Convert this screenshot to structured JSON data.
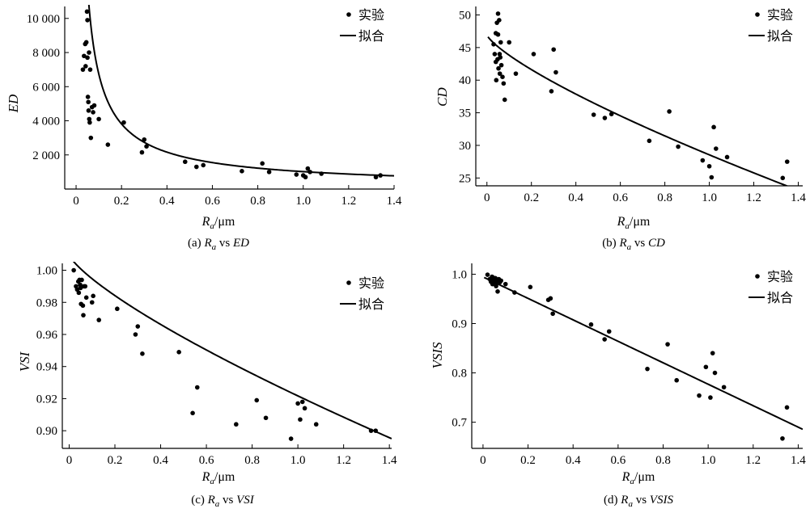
{
  "chart_data": [
    {
      "id": "a",
      "type": "scatter",
      "ylabel": "ED",
      "xlabel_main": "R",
      "xlabel_sub": "a",
      "xlabel_unit": "/μm",
      "caption": {
        "prefix": "(a) ",
        "r": "R",
        "sub": "a",
        "mid": " vs ",
        "var": "ED"
      },
      "xlim": [
        -0.05,
        1.4
      ],
      "ylim": [
        0,
        10700
      ],
      "xticks": [
        0,
        0.2,
        0.4,
        0.6,
        0.8,
        1.0,
        1.2,
        1.4
      ],
      "xtick_labels": [
        "0",
        "0.2",
        "0.4",
        "0.6",
        "0.8",
        "1.0",
        "1.2",
        "1.4"
      ],
      "yticks": [
        2000,
        4000,
        6000,
        8000,
        10000
      ],
      "ytick_labels": [
        "2 000",
        "4 000",
        "6 000",
        "8 000",
        "10 000"
      ],
      "legend": {
        "points": "实验",
        "line": "拟合"
      },
      "fit": {
        "form": "power",
        "a": 1020,
        "b": -0.82
      },
      "points": [
        [
          0.03,
          7000
        ],
        [
          0.035,
          7800
        ],
        [
          0.04,
          8500
        ],
        [
          0.042,
          7200
        ],
        [
          0.045,
          8600
        ],
        [
          0.048,
          10400
        ],
        [
          0.05,
          9900
        ],
        [
          0.05,
          7700
        ],
        [
          0.052,
          5400
        ],
        [
          0.054,
          5100
        ],
        [
          0.055,
          4600
        ],
        [
          0.057,
          8000
        ],
        [
          0.058,
          4100
        ],
        [
          0.06,
          3900
        ],
        [
          0.062,
          7000
        ],
        [
          0.065,
          3000
        ],
        [
          0.07,
          4800
        ],
        [
          0.075,
          4500
        ],
        [
          0.08,
          4900
        ],
        [
          0.1,
          4100
        ],
        [
          0.14,
          2600
        ],
        [
          0.21,
          3900
        ],
        [
          0.29,
          2150
        ],
        [
          0.3,
          2900
        ],
        [
          0.31,
          2500
        ],
        [
          0.48,
          1600
        ],
        [
          0.53,
          1300
        ],
        [
          0.56,
          1400
        ],
        [
          0.73,
          1050
        ],
        [
          0.82,
          1500
        ],
        [
          0.85,
          1000
        ],
        [
          0.97,
          850
        ],
        [
          1.0,
          800
        ],
        [
          1.01,
          700
        ],
        [
          1.02,
          1200
        ],
        [
          1.03,
          1000
        ],
        [
          1.08,
          900
        ],
        [
          1.32,
          700
        ],
        [
          1.34,
          800
        ]
      ]
    },
    {
      "id": "b",
      "type": "scatter",
      "ylabel": "CD",
      "xlabel_main": "R",
      "xlabel_sub": "a",
      "xlabel_unit": "/μm",
      "caption": {
        "prefix": "(b) ",
        "r": "R",
        "sub": "a",
        "mid": " vs ",
        "var": "CD"
      },
      "xlim": [
        -0.05,
        1.42
      ],
      "ylim": [
        23.8,
        51.3
      ],
      "xticks": [
        0,
        0.2,
        0.4,
        0.6,
        0.8,
        1.0,
        1.2,
        1.4
      ],
      "xtick_labels": [
        "0",
        "0.2",
        "0.4",
        "0.6",
        "0.8",
        "1.0",
        "1.2",
        "1.4"
      ],
      "yticks": [
        25,
        30,
        35,
        40,
        45,
        50
      ],
      "ytick_labels": [
        "25",
        "30",
        "35",
        "40",
        "45",
        "50"
      ],
      "legend": {
        "points": "实验",
        "line": "拟合"
      },
      "fit": {
        "form": "power_offset",
        "a": 46.95,
        "b": -18.4,
        "c": 0.77
      },
      "points": [
        [
          0.03,
          45.5
        ],
        [
          0.035,
          44
        ],
        [
          0.04,
          47.2
        ],
        [
          0.04,
          42.8
        ],
        [
          0.042,
          40
        ],
        [
          0.045,
          48.8
        ],
        [
          0.048,
          43.2
        ],
        [
          0.05,
          50.2
        ],
        [
          0.05,
          47
        ],
        [
          0.052,
          41.8
        ],
        [
          0.055,
          49.2
        ],
        [
          0.057,
          44
        ],
        [
          0.058,
          41
        ],
        [
          0.06,
          43.5
        ],
        [
          0.062,
          45.8
        ],
        [
          0.065,
          42.3
        ],
        [
          0.07,
          40.5
        ],
        [
          0.075,
          39.5
        ],
        [
          0.08,
          37
        ],
        [
          0.1,
          45.8
        ],
        [
          0.13,
          41
        ],
        [
          0.21,
          44
        ],
        [
          0.29,
          38.3
        ],
        [
          0.3,
          44.7
        ],
        [
          0.31,
          41.2
        ],
        [
          0.48,
          34.7
        ],
        [
          0.53,
          34.2
        ],
        [
          0.56,
          34.8
        ],
        [
          0.73,
          30.7
        ],
        [
          0.82,
          35.2
        ],
        [
          0.86,
          29.8
        ],
        [
          0.97,
          27.7
        ],
        [
          1.0,
          26.8
        ],
        [
          1.01,
          25.1
        ],
        [
          1.02,
          32.8
        ],
        [
          1.03,
          29.5
        ],
        [
          1.08,
          28.2
        ],
        [
          1.33,
          25
        ],
        [
          1.35,
          27.5
        ]
      ]
    },
    {
      "id": "c",
      "type": "scatter",
      "ylabel": "VSI",
      "xlabel_main": "R",
      "xlabel_sub": "a",
      "xlabel_unit": "/μm",
      "caption": {
        "prefix": "(c) ",
        "r": "R",
        "sub": "a",
        "mid": " vs ",
        "var": "VSI"
      },
      "xlim": [
        -0.03,
        1.41
      ],
      "ylim": [
        0.889,
        1.0043
      ],
      "xticks": [
        0,
        0.2,
        0.4,
        0.6,
        0.8,
        1.0,
        1.2,
        1.4
      ],
      "xtick_labels": [
        "0",
        "0.2",
        "0.4",
        "0.6",
        "0.8",
        "1.0",
        "1.2",
        "1.4"
      ],
      "yticks": [
        0.9,
        0.92,
        0.94,
        0.96,
        0.98,
        1.0
      ],
      "ytick_labels": [
        "0.90",
        "0.92",
        "0.94",
        "0.96",
        "0.98",
        "1.00"
      ],
      "legend": {
        "points": "实验",
        "line": "拟合"
      },
      "fit": {
        "form": "power_offset",
        "a": 1.0097,
        "b": -0.088,
        "c": 0.77
      },
      "points": [
        [
          0.02,
          1.0
        ],
        [
          0.03,
          0.99
        ],
        [
          0.035,
          0.988
        ],
        [
          0.04,
          0.993
        ],
        [
          0.042,
          0.986
        ],
        [
          0.045,
          0.994
        ],
        [
          0.048,
          0.991
        ],
        [
          0.05,
          0.989
        ],
        [
          0.052,
          0.979
        ],
        [
          0.055,
          0.994
        ],
        [
          0.06,
          0.978
        ],
        [
          0.062,
          0.972
        ],
        [
          0.065,
          0.99
        ],
        [
          0.07,
          0.99
        ],
        [
          0.075,
          0.983
        ],
        [
          0.1,
          0.98
        ],
        [
          0.105,
          0.984
        ],
        [
          0.13,
          0.969
        ],
        [
          0.21,
          0.976
        ],
        [
          0.29,
          0.96
        ],
        [
          0.3,
          0.965
        ],
        [
          0.32,
          0.948
        ],
        [
          0.48,
          0.949
        ],
        [
          0.54,
          0.911
        ],
        [
          0.56,
          0.927
        ],
        [
          0.73,
          0.904
        ],
        [
          0.82,
          0.919
        ],
        [
          0.86,
          0.908
        ],
        [
          0.97,
          0.895
        ],
        [
          1.0,
          0.917
        ],
        [
          1.01,
          0.907
        ],
        [
          1.02,
          0.918
        ],
        [
          1.03,
          0.914
        ],
        [
          1.08,
          0.904
        ],
        [
          1.32,
          0.9
        ],
        [
          1.34,
          0.9
        ]
      ]
    },
    {
      "id": "d",
      "type": "scatter",
      "ylabel": "VSIS",
      "xlabel_main": "R",
      "xlabel_sub": "a",
      "xlabel_unit": "/μm",
      "caption": {
        "prefix": "(d) ",
        "r": "R",
        "sub": "a",
        "mid": " vs ",
        "var": "VSIS"
      },
      "xlim": [
        -0.05,
        1.42
      ],
      "ylim": [
        0.647,
        1.022
      ],
      "xticks": [
        0,
        0.2,
        0.4,
        0.6,
        0.8,
        1.0,
        1.2,
        1.4
      ],
      "xtick_labels": [
        "0",
        "0.2",
        "0.4",
        "0.6",
        "0.8",
        "1.0",
        "1.2",
        "1.4"
      ],
      "yticks": [
        0.7,
        0.8,
        0.9,
        1.0
      ],
      "ytick_labels": [
        "0.7",
        "0.8",
        "0.9",
        "1.0"
      ],
      "legend": {
        "points": "实验",
        "line": "拟合"
      },
      "fit": {
        "form": "linear",
        "a": 0.9945,
        "b": -0.2175
      },
      "points": [
        [
          0.02,
          0.999
        ],
        [
          0.03,
          0.99
        ],
        [
          0.035,
          0.985
        ],
        [
          0.04,
          0.995
        ],
        [
          0.042,
          0.98
        ],
        [
          0.045,
          0.993
        ],
        [
          0.048,
          0.988
        ],
        [
          0.05,
          0.99
        ],
        [
          0.052,
          0.984
        ],
        [
          0.055,
          0.992
        ],
        [
          0.058,
          0.976
        ],
        [
          0.06,
          0.986
        ],
        [
          0.065,
          0.965
        ],
        [
          0.07,
          0.99
        ],
        [
          0.075,
          0.984
        ],
        [
          0.08,
          0.987
        ],
        [
          0.1,
          0.98
        ],
        [
          0.14,
          0.963
        ],
        [
          0.21,
          0.974
        ],
        [
          0.29,
          0.948
        ],
        [
          0.3,
          0.951
        ],
        [
          0.31,
          0.92
        ],
        [
          0.48,
          0.898
        ],
        [
          0.54,
          0.868
        ],
        [
          0.56,
          0.884
        ],
        [
          0.73,
          0.808
        ],
        [
          0.82,
          0.858
        ],
        [
          0.86,
          0.785
        ],
        [
          0.96,
          0.754
        ],
        [
          0.99,
          0.812
        ],
        [
          1.01,
          0.75
        ],
        [
          1.02,
          0.84
        ],
        [
          1.03,
          0.8
        ],
        [
          1.07,
          0.771
        ],
        [
          1.33,
          0.667
        ],
        [
          1.35,
          0.73
        ]
      ]
    }
  ]
}
